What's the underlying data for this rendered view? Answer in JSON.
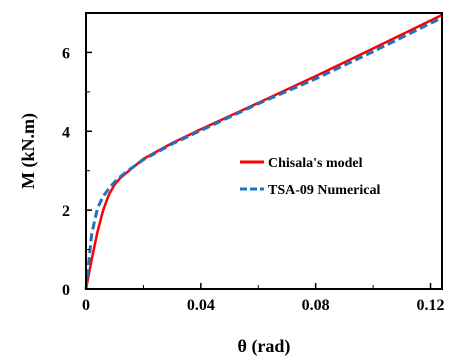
{
  "chart_data": {
    "type": "line",
    "xlabel": "θ (rad)",
    "ylabel": "M (kN.m)",
    "xlim": [
      0,
      0.124
    ],
    "ylim": [
      0,
      7
    ],
    "x_ticks": [
      "0",
      "0.04",
      "0.08",
      "0.12"
    ],
    "x_tick_values": [
      0,
      0.04,
      0.08,
      0.12
    ],
    "y_ticks": [
      "0",
      "2",
      "4",
      "6"
    ],
    "y_tick_values": [
      0,
      2,
      4,
      6
    ],
    "grid": false,
    "legend_position": "center-right",
    "series": [
      {
        "name": "Chisala's model",
        "color": "#ff0000",
        "style": "solid",
        "x": [
          0,
          0.002,
          0.004,
          0.006,
          0.008,
          0.01,
          0.012,
          0.015,
          0.02,
          0.03,
          0.04,
          0.06,
          0.08,
          0.1,
          0.124
        ],
        "y": [
          0,
          0.75,
          1.45,
          2.0,
          2.4,
          2.65,
          2.82,
          3.0,
          3.3,
          3.7,
          4.05,
          4.72,
          5.4,
          6.1,
          6.95
        ]
      },
      {
        "name": "TSA-09 Numerical",
        "color": "#1e73be",
        "style": "dashed",
        "x": [
          0,
          0.002,
          0.004,
          0.006,
          0.008,
          0.01,
          0.012,
          0.015,
          0.02,
          0.03,
          0.04,
          0.06,
          0.08,
          0.1,
          0.124
        ],
        "y": [
          0,
          1.4,
          2.05,
          2.35,
          2.55,
          2.72,
          2.85,
          3.02,
          3.28,
          3.68,
          4.02,
          4.7,
          5.33,
          6.02,
          6.88
        ]
      }
    ]
  }
}
